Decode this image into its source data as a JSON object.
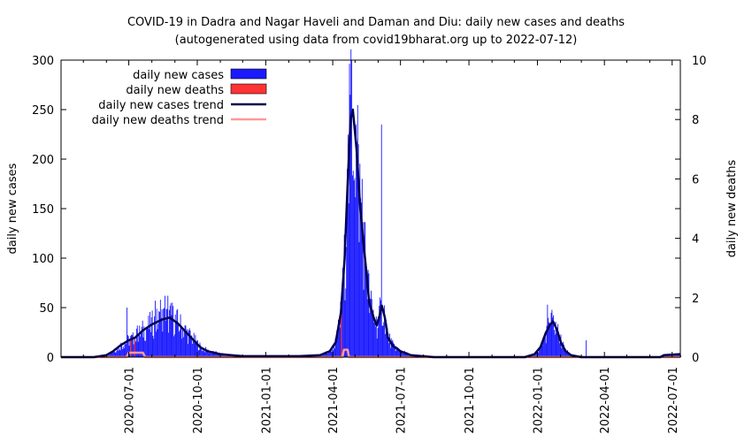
{
  "chart_data": {
    "type": "bar",
    "title": "COVID-19 in Dadra and Nagar Haveli and Daman and Diu: daily new cases and deaths",
    "subtitle": "(autogenerated using data from covid19bharat.org up to 2022-07-12)",
    "ylabel": "daily new cases",
    "y2label": "daily new deaths",
    "xlim": [
      "2020-04-01",
      "2022-07-12"
    ],
    "ylim": [
      0,
      300
    ],
    "y2lim": [
      0,
      10
    ],
    "xticks": [
      "2020-07-01",
      "2020-10-01",
      "2021-01-01",
      "2021-04-01",
      "2021-07-01",
      "2021-10-01",
      "2022-01-01",
      "2022-04-01",
      "2022-07-01"
    ],
    "yticks": [
      "0",
      "50",
      "100",
      "150",
      "200",
      "250",
      "300"
    ],
    "y2ticks": [
      "0",
      "2",
      "4",
      "6",
      "8",
      "10"
    ],
    "legend_position": "top-left",
    "legend": [
      "daily new cases",
      "daily new deaths",
      "daily new cases trend",
      "daily new deaths trend"
    ],
    "colors": {
      "cases": "#1a1aff",
      "deaths": "#ff3333",
      "cases_trend": "#000050",
      "deaths_trend": "#ff9999"
    },
    "cases_trend_points": [
      [
        "2020-04-01",
        0
      ],
      [
        "2020-05-15",
        0
      ],
      [
        "2020-06-01",
        2
      ],
      [
        "2020-06-10",
        6
      ],
      [
        "2020-06-20",
        12
      ],
      [
        "2020-07-01",
        17
      ],
      [
        "2020-07-10",
        20
      ],
      [
        "2020-07-20",
        27
      ],
      [
        "2020-08-01",
        33
      ],
      [
        "2020-08-15",
        38
      ],
      [
        "2020-08-25",
        40
      ],
      [
        "2020-09-05",
        34
      ],
      [
        "2020-09-15",
        26
      ],
      [
        "2020-09-25",
        18
      ],
      [
        "2020-10-05",
        10
      ],
      [
        "2020-10-15",
        6
      ],
      [
        "2020-11-01",
        3
      ],
      [
        "2020-12-01",
        1
      ],
      [
        "2021-01-15",
        1
      ],
      [
        "2021-02-15",
        1
      ],
      [
        "2021-03-15",
        2
      ],
      [
        "2021-03-28",
        6
      ],
      [
        "2021-04-05",
        15
      ],
      [
        "2021-04-12",
        45
      ],
      [
        "2021-04-17",
        100
      ],
      [
        "2021-04-21",
        175
      ],
      [
        "2021-04-25",
        240
      ],
      [
        "2021-04-28",
        250
      ],
      [
        "2021-05-03",
        210
      ],
      [
        "2021-05-08",
        150
      ],
      [
        "2021-05-13",
        110
      ],
      [
        "2021-05-17",
        80
      ],
      [
        "2021-05-20",
        55
      ],
      [
        "2021-05-26",
        40
      ],
      [
        "2021-05-30",
        32
      ],
      [
        "2021-06-03",
        42
      ],
      [
        "2021-06-06",
        52
      ],
      [
        "2021-06-10",
        40
      ],
      [
        "2021-06-14",
        20
      ],
      [
        "2021-06-20",
        12
      ],
      [
        "2021-07-01",
        6
      ],
      [
        "2021-07-15",
        2
      ],
      [
        "2021-08-15",
        0
      ],
      [
        "2021-12-15",
        0
      ],
      [
        "2021-12-28",
        3
      ],
      [
        "2022-01-05",
        10
      ],
      [
        "2022-01-12",
        24
      ],
      [
        "2022-01-18",
        33
      ],
      [
        "2022-01-22",
        36
      ],
      [
        "2022-01-27",
        28
      ],
      [
        "2022-02-02",
        14
      ],
      [
        "2022-02-08",
        6
      ],
      [
        "2022-02-15",
        2
      ],
      [
        "2022-03-01",
        0
      ],
      [
        "2022-06-15",
        0
      ],
      [
        "2022-06-20",
        2
      ],
      [
        "2022-07-12",
        3
      ]
    ],
    "deaths_trend_points": [
      [
        "2020-04-01",
        0
      ],
      [
        "2020-06-28",
        0
      ],
      [
        "2020-07-01",
        0.15
      ],
      [
        "2020-07-20",
        0.15
      ],
      [
        "2020-07-23",
        0
      ],
      [
        "2021-04-14",
        0
      ],
      [
        "2021-04-16",
        0.25
      ],
      [
        "2021-04-21",
        0.25
      ],
      [
        "2021-04-23",
        0
      ],
      [
        "2022-07-12",
        0
      ]
    ],
    "case_spikes": [
      [
        "2020-06-28",
        50
      ],
      [
        "2020-07-06",
        25
      ],
      [
        "2020-07-12",
        32
      ],
      [
        "2020-08-05",
        57
      ],
      [
        "2020-08-12",
        58
      ],
      [
        "2020-08-18",
        62
      ],
      [
        "2020-08-22",
        62
      ],
      [
        "2020-08-28",
        55
      ],
      [
        "2021-04-20",
        190
      ],
      [
        "2021-04-24",
        265
      ],
      [
        "2021-04-26",
        300
      ],
      [
        "2021-05-02",
        235
      ],
      [
        "2021-05-05",
        215
      ],
      [
        "2021-05-10",
        180
      ],
      [
        "2021-06-05",
        235
      ],
      [
        "2022-01-14",
        53
      ],
      [
        "2022-01-21",
        40
      ],
      [
        "2022-03-07",
        17
      ]
    ],
    "death_spikes": [
      [
        "2020-07-03",
        0.6
      ],
      [
        "2020-07-08",
        0.6
      ],
      [
        "2021-04-12",
        2.0
      ]
    ]
  }
}
